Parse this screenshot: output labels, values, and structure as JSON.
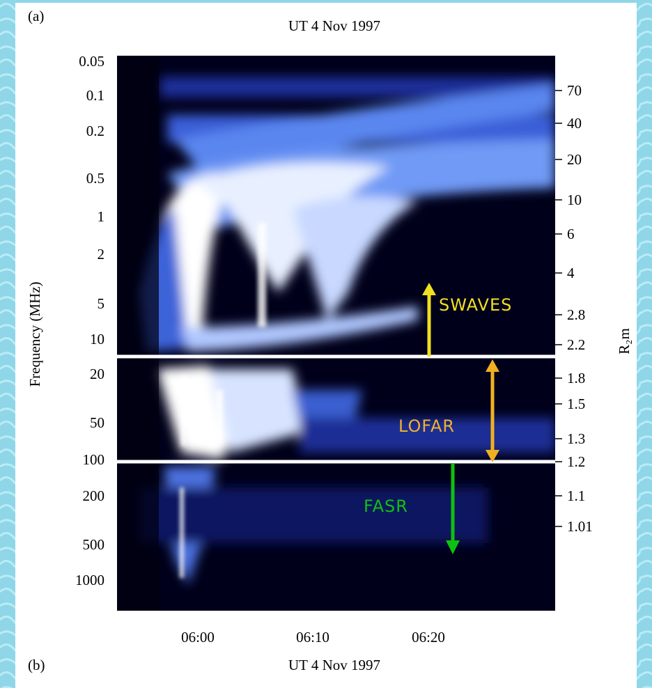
{
  "figure": {
    "panel_top": "(a)",
    "panel_bottom": "(b)",
    "title_top": "UT 4 Nov 1997",
    "title_bottom": "UT 4 Nov 1997",
    "y_label": "Frequency (MHz)",
    "y2_label": "R₂m",
    "y_ticks": [
      "0.05",
      "0.1",
      "0.2",
      "0.5",
      "1",
      "2",
      "5",
      "10",
      "20",
      "50",
      "100",
      "200",
      "500",
      "1000"
    ],
    "y2_ticks": [
      "70",
      "40",
      "20",
      "10",
      "6",
      "4",
      "2.8",
      "2.2",
      "1.8",
      "1.5",
      "1.3",
      "1.2",
      "1.1",
      "1.01"
    ],
    "x_ticks": [
      "06:00",
      "06:10",
      "06:20"
    ],
    "annotations": {
      "swaves": "SWAVES",
      "lofar": "LOFAR",
      "fasr": "FASR"
    }
  }
}
